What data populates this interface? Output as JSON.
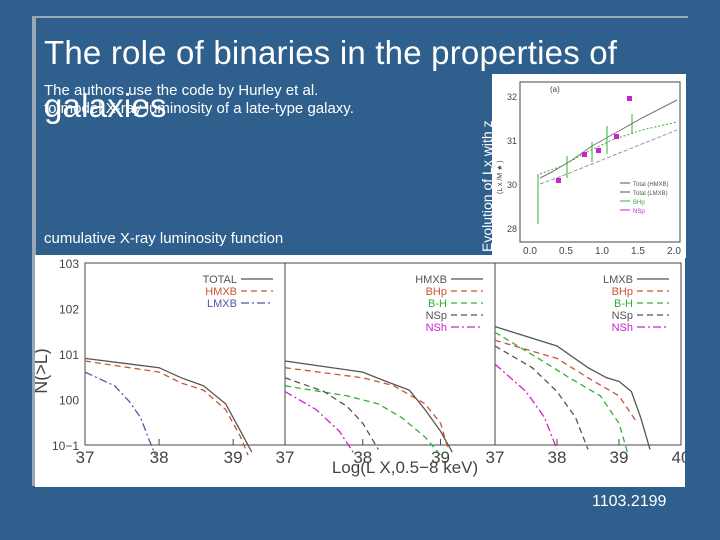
{
  "slide": {
    "title": "The role of binaries in the properties of galaxies",
    "intro_line1": "The authors use the code by Hurley et al.",
    "intro_line2": "to model X-ray luminosity of a late-type galaxy.",
    "cumulative_label": "cumulative X-ray luminosity function",
    "evolution_label": "Evolution of Lx with z",
    "reference": "1103.2199",
    "background_color": "#2f5f8c"
  },
  "inset": {
    "panel_tag": "(a)",
    "legend": [
      "Total (HMXB)",
      "Total (LMXB)",
      "BHp",
      "NSp"
    ],
    "legend_colors": [
      "#555555",
      "#555555",
      "#33b033",
      "#cc22cc"
    ],
    "x_ticks": [
      "0.0",
      "0.5",
      "1.0",
      "1.5",
      "2.0"
    ],
    "y_ticks": [
      "28",
      "30",
      "31",
      "32"
    ],
    "ylabel": "(L x /M ★ )"
  },
  "chart_data": [
    {
      "type": "line",
      "panel": "total",
      "xlabel": "Log(L X,0.5−8 keV)",
      "ylabel": "N(>L)",
      "y_scale": "log",
      "x_ticks": [
        "37",
        "38",
        "39"
      ],
      "y_ticks": [
        "10−1",
        "100",
        "101",
        "102",
        "103"
      ],
      "legend": [
        "TOTAL",
        "HMXB",
        "LMXB"
      ],
      "x_range": [
        37,
        39.7
      ],
      "y_range": [
        0.1,
        1000
      ],
      "series": [
        {
          "name": "TOTAL",
          "color": "#555555",
          "dash": "solid",
          "x": [
            37.0,
            38.0,
            38.3,
            38.6,
            38.9,
            39.1,
            39.25
          ],
          "y": [
            8,
            5,
            3,
            2,
            0.8,
            0.2,
            0.07
          ]
        },
        {
          "name": "HMXB",
          "color": "#cc5533",
          "dash": "dash",
          "x": [
            37.0,
            38.0,
            38.3,
            38.6,
            38.9,
            39.1,
            39.2
          ],
          "y": [
            7,
            4,
            2.3,
            1.6,
            0.6,
            0.15,
            0.06
          ]
        },
        {
          "name": "LMXB",
          "color": "#5555aa",
          "dash": "dashdot",
          "x": [
            37.0,
            37.4,
            37.6,
            37.75,
            37.85,
            37.95
          ],
          "y": [
            4,
            2,
            0.9,
            0.4,
            0.15,
            0.06
          ]
        }
      ]
    },
    {
      "type": "line",
      "panel": "hmxb",
      "xlabel": "Log(L X,0.5−8 keV)",
      "x_ticks": [
        "37",
        "38",
        "39"
      ],
      "legend": [
        "HMXB",
        "BHp",
        "B-H",
        "NSp",
        "NSh"
      ],
      "x_range": [
        37,
        39.7
      ],
      "y_range": [
        0.1,
        1000
      ],
      "series": [
        {
          "name": "HMXB",
          "color": "#555555",
          "dash": "solid",
          "x": [
            37.0,
            38.0,
            38.3,
            38.6,
            38.8,
            39.0,
            39.15
          ],
          "y": [
            7,
            4,
            2.5,
            1.6,
            0.6,
            0.2,
            0.07
          ]
        },
        {
          "name": "BHp",
          "color": "#cc5533",
          "dash": "dash",
          "x": [
            37.0,
            38.0,
            38.4,
            38.8,
            39.0,
            39.1
          ],
          "y": [
            5,
            3,
            2.0,
            0.8,
            0.3,
            0.08
          ]
        },
        {
          "name": "B-H",
          "color": "#33b033",
          "dash": "dash",
          "x": [
            37.0,
            37.8,
            38.2,
            38.5,
            38.8,
            39.0
          ],
          "y": [
            2,
            1.2,
            0.8,
            0.4,
            0.15,
            0.06
          ]
        },
        {
          "name": "NSp",
          "color": "#555555",
          "dash": "dash",
          "x": [
            37.0,
            37.5,
            37.8,
            38.0,
            38.2
          ],
          "y": [
            3,
            1.5,
            0.7,
            0.3,
            0.08
          ]
        },
        {
          "name": "NSh",
          "color": "#cc22cc",
          "dash": "dashdot",
          "x": [
            37.0,
            37.4,
            37.7,
            37.9
          ],
          "y": [
            1.5,
            0.6,
            0.2,
            0.06
          ]
        }
      ]
    },
    {
      "type": "line",
      "panel": "lmxb",
      "xlabel": "Log(L X,0.5−8 keV)",
      "x_ticks": [
        "37",
        "38",
        "39",
        "40"
      ],
      "legend": [
        "LMXB",
        "BHp",
        "B-H",
        "NSp",
        "NSh"
      ],
      "x_range": [
        37,
        40
      ],
      "y_range": [
        0.1,
        1000
      ],
      "series": [
        {
          "name": "LMXB",
          "color": "#555555",
          "dash": "solid",
          "x": [
            37.0,
            38.0,
            38.5,
            38.8,
            39.0,
            39.2,
            39.35,
            39.5
          ],
          "y": [
            40,
            15,
            5,
            3,
            2.5,
            1.5,
            0.4,
            0.08
          ]
        },
        {
          "name": "BHp",
          "color": "#cc5533",
          "dash": "dash",
          "x": [
            37.0,
            38.0,
            38.5,
            39.0,
            39.3
          ],
          "y": [
            20,
            8,
            3,
            1.2,
            0.3
          ]
        },
        {
          "name": "B-H",
          "color": "#33b033",
          "dash": "dash",
          "x": [
            37.0,
            37.7,
            38.2,
            38.7,
            39.0,
            39.15
          ],
          "y": [
            30,
            8,
            3,
            1.2,
            0.3,
            0.06
          ]
        },
        {
          "name": "NSp",
          "color": "#555555",
          "dash": "dash",
          "x": [
            37.0,
            37.6,
            38.0,
            38.3,
            38.5
          ],
          "y": [
            15,
            5,
            1.5,
            0.4,
            0.08
          ]
        },
        {
          "name": "NSh",
          "color": "#cc22cc",
          "dash": "dashdot",
          "x": [
            37.0,
            37.5,
            37.8,
            38.0
          ],
          "y": [
            6,
            1.5,
            0.4,
            0.08
          ]
        }
      ]
    }
  ]
}
